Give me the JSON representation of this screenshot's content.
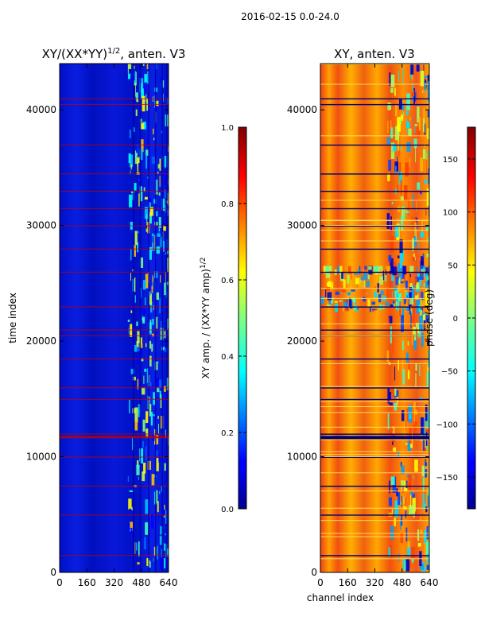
{
  "figure": {
    "suptitle": "2016-02-15 0.0-24.0"
  },
  "chart_data": [
    {
      "type": "heatmap",
      "title": "XY/(XX*YY)",
      "title_exponent": "1/2",
      "title_suffix": ", anten. V3",
      "xlabel": "",
      "ylabel": "time index",
      "xlim": [
        0,
        640
      ],
      "ylim": [
        0,
        44000
      ],
      "x_ticks": [
        0,
        160,
        320,
        480,
        640
      ],
      "y_ticks": [
        0,
        10000,
        20000,
        30000,
        40000
      ],
      "colorbar": {
        "label": "XY amp. / (XX*YY amp)",
        "label_exponent": "1/2",
        "range": [
          0.0,
          1.0
        ],
        "ticks": [
          "0.0",
          "0.2",
          "0.4",
          "0.6",
          "0.8",
          "1.0"
        ],
        "colormap": "jet"
      },
      "features": {
        "low_value_region_channels": [
          0,
          400
        ],
        "active_region_channels": [
          400,
          640
        ],
        "flagged_time_rows_approx": [
          1500,
          5000,
          7500,
          10000,
          11800,
          12000,
          15000,
          16000,
          18500,
          20500,
          21000,
          23000,
          26000,
          28000,
          30000,
          31500,
          33000,
          34500,
          37000,
          40500,
          41000
        ]
      }
    },
    {
      "type": "heatmap",
      "title": "XY, anten. V3",
      "xlabel": "channel index",
      "ylabel": "",
      "xlim": [
        0,
        640
      ],
      "ylim": [
        0,
        44000
      ],
      "x_ticks": [
        0,
        160,
        320,
        480,
        640
      ],
      "y_ticks": [
        0,
        10000,
        20000,
        30000,
        40000
      ],
      "colorbar": {
        "label": "phase (deg)",
        "range": [
          -180,
          180
        ],
        "ticks": [
          "−150",
          "−100",
          "−50",
          "0",
          "50",
          "100",
          "150"
        ],
        "colormap": "jet"
      },
      "features": {
        "phase_disturbed_time_range": [
          22500,
          26500
        ],
        "active_region_channels": [
          390,
          640
        ],
        "flagged_time_rows_approx": [
          1500,
          5000,
          7500,
          10000,
          11800,
          12000,
          15000,
          16000,
          18500,
          20500,
          21000,
          23000,
          26000,
          28000,
          30000,
          31500,
          33000,
          34500,
          37000,
          40500,
          41000
        ]
      }
    }
  ]
}
